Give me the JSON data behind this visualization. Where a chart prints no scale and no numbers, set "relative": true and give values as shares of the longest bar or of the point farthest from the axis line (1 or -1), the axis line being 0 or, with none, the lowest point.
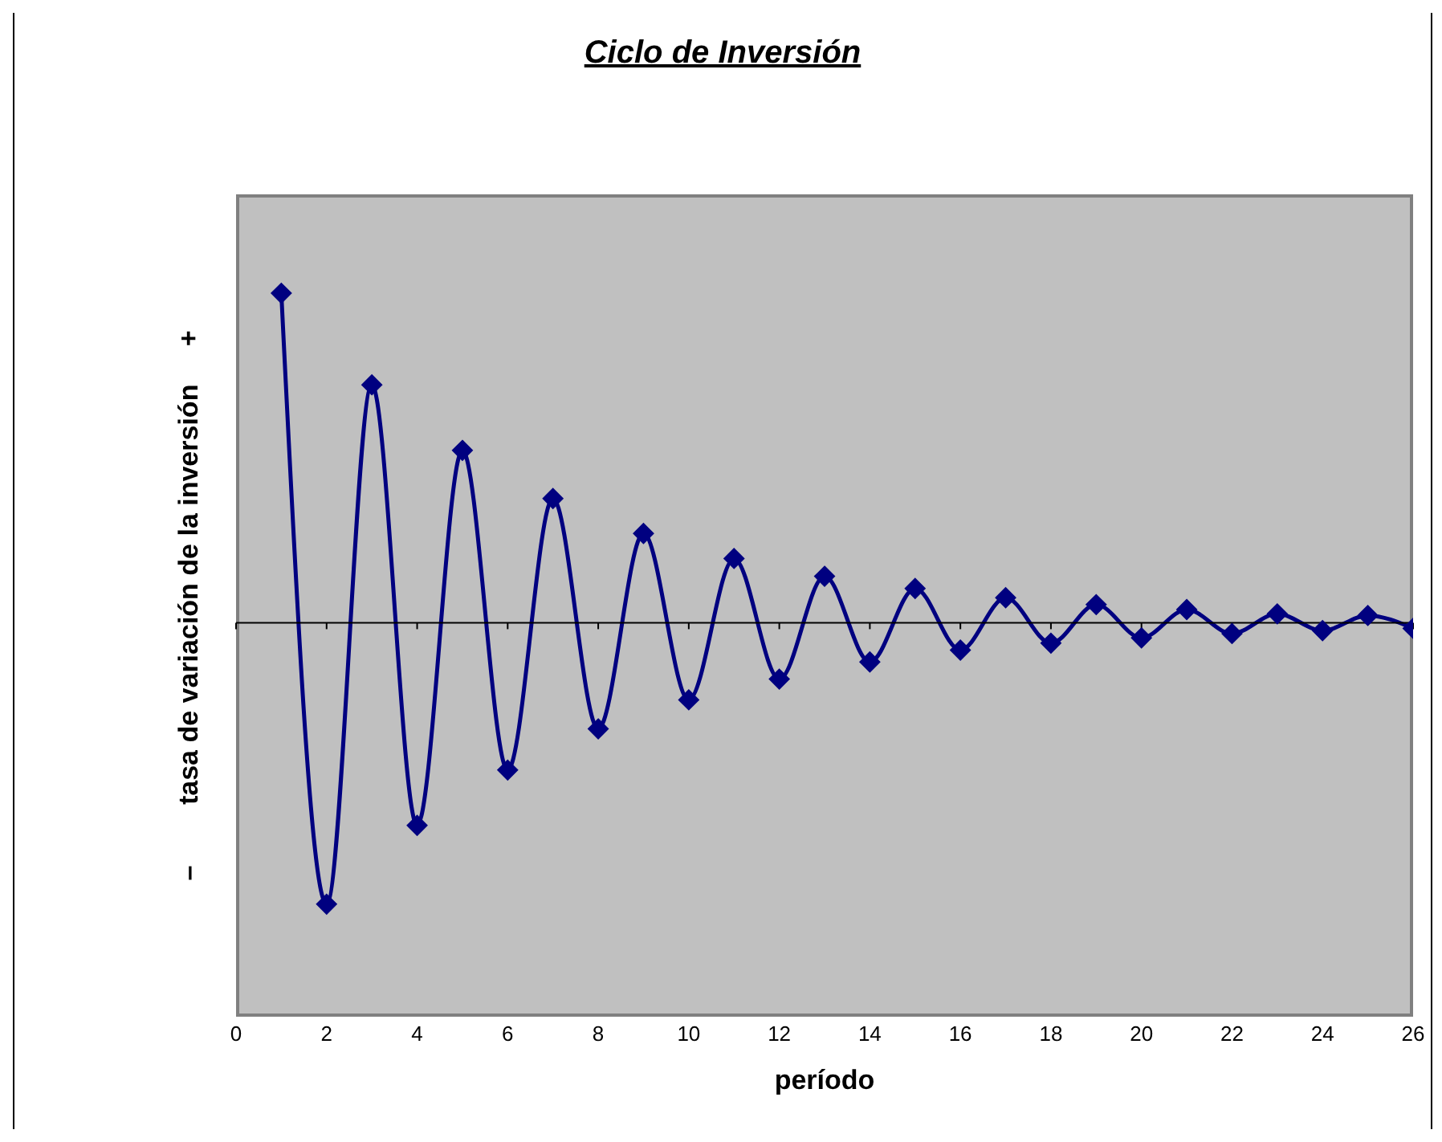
{
  "chart_data": {
    "type": "line",
    "title": "Ciclo de Inversión",
    "xlabel": "período",
    "ylabel": "–        tasa de variación de la inversión     +",
    "relative": true,
    "x": [
      1,
      2,
      3,
      4,
      5,
      6,
      7,
      8,
      9,
      10,
      11,
      12,
      13,
      14,
      15,
      16,
      17,
      18,
      19,
      20,
      21,
      22,
      23,
      24,
      25,
      26
    ],
    "series": [
      {
        "color": "#000080",
        "values": [
          1.0,
          -0.854,
          0.722,
          -0.615,
          0.523,
          -0.447,
          0.377,
          -0.322,
          0.271,
          -0.234,
          0.195,
          -0.171,
          0.141,
          -0.119,
          0.104,
          -0.083,
          0.076,
          -0.062,
          0.055,
          -0.046,
          0.04,
          -0.033,
          0.027,
          -0.024,
          0.022,
          -0.017
        ]
      }
    ],
    "xlim": [
      0,
      26
    ],
    "xticks": [
      0,
      2,
      4,
      6,
      8,
      10,
      12,
      14,
      16,
      18,
      20,
      22,
      24,
      26
    ],
    "marker": "diamond",
    "line_style": "solid"
  }
}
